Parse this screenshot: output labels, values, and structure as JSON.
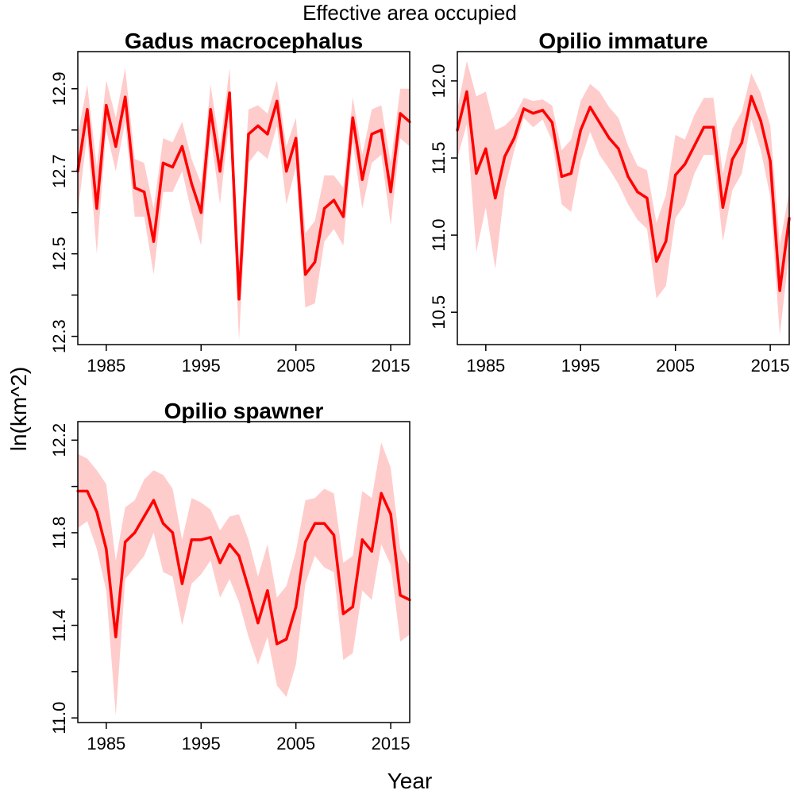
{
  "figure": {
    "title": "Effective area occupied",
    "xlabel": "Year",
    "ylabel": "ln(km^2)",
    "line_color": "#ff0000",
    "band_color": "#ffcccc"
  },
  "chart_data": [
    {
      "type": "line",
      "title": "Gadus macrocephalus",
      "xlabel": "Year",
      "ylabel": "ln(km^2)",
      "xlim": [
        1982,
        2017
      ],
      "ylim": [
        12.28,
        12.99
      ],
      "xticks": [
        1985,
        1995,
        2005,
        2015
      ],
      "yticks": [
        12.3,
        12.4,
        12.5,
        12.6,
        12.7,
        12.8,
        12.9
      ],
      "yticklabels": [
        "12.3",
        "",
        "12.5",
        "",
        "12.7",
        "",
        "12.9"
      ],
      "series": [
        {
          "x": [
            1982,
            1983,
            1984,
            1985,
            1986,
            1987,
            1988,
            1989,
            1990,
            1991,
            1992,
            1993,
            1994,
            1995,
            1996,
            1997,
            1998,
            1999,
            2000,
            2001,
            2002,
            2003,
            2004,
            2005,
            2006,
            2007,
            2008,
            2009,
            2010,
            2011,
            2012,
            2013,
            2014,
            2015,
            2016,
            2017
          ],
          "y": [
            12.7,
            12.85,
            12.61,
            12.86,
            12.76,
            12.88,
            12.66,
            12.65,
            12.53,
            12.72,
            12.71,
            12.76,
            12.67,
            12.6,
            12.85,
            12.7,
            12.89,
            12.39,
            12.79,
            12.81,
            12.79,
            12.87,
            12.7,
            12.78,
            12.45,
            12.48,
            12.61,
            12.63,
            12.59,
            12.83,
            12.68,
            12.79,
            12.8,
            12.65,
            12.84,
            12.82
          ],
          "lower": [
            12.6,
            12.79,
            12.5,
            12.8,
            12.7,
            12.82,
            12.59,
            12.59,
            12.45,
            12.65,
            12.65,
            12.7,
            12.6,
            12.52,
            12.79,
            12.62,
            12.83,
            12.29,
            12.72,
            12.75,
            12.73,
            12.81,
            12.62,
            12.71,
            12.37,
            12.38,
            12.53,
            12.56,
            12.52,
            12.77,
            12.61,
            12.72,
            12.74,
            12.57,
            12.78,
            12.76
          ],
          "upper": [
            12.79,
            12.91,
            12.71,
            12.92,
            12.83,
            12.95,
            12.73,
            12.72,
            12.61,
            12.78,
            12.77,
            12.82,
            12.73,
            12.67,
            12.91,
            12.76,
            12.95,
            12.48,
            12.85,
            12.86,
            12.84,
            12.92,
            12.76,
            12.83,
            12.55,
            12.58,
            12.69,
            12.69,
            12.66,
            12.88,
            12.74,
            12.85,
            12.86,
            12.72,
            12.9,
            12.9
          ]
        }
      ]
    },
    {
      "type": "line",
      "title": "Opilio immature",
      "xlabel": "Year",
      "ylabel": "ln(km^2)",
      "xlim": [
        1982,
        2017
      ],
      "ylim": [
        10.29,
        12.19
      ],
      "xticks": [
        1985,
        1995,
        2005,
        2015
      ],
      "yticks": [
        10.5,
        11.0,
        11.5,
        12.0
      ],
      "yticklabels": [
        "10.5",
        "11.0",
        "11.5",
        "12.0"
      ],
      "series": [
        {
          "x": [
            1982,
            1983,
            1984,
            1985,
            1986,
            1987,
            1988,
            1989,
            1990,
            1991,
            1992,
            1993,
            1994,
            1995,
            1996,
            1997,
            1998,
            1999,
            2000,
            2001,
            2002,
            2003,
            2004,
            2005,
            2006,
            2007,
            2008,
            2009,
            2010,
            2011,
            2012,
            2013,
            2014,
            2015,
            2016,
            2017
          ],
          "y": [
            11.68,
            11.93,
            11.4,
            11.56,
            11.24,
            11.51,
            11.63,
            11.82,
            11.79,
            11.81,
            11.73,
            11.38,
            11.4,
            11.68,
            11.83,
            11.73,
            11.63,
            11.56,
            11.38,
            11.28,
            11.24,
            10.83,
            10.96,
            11.39,
            11.46,
            11.58,
            11.7,
            11.7,
            11.18,
            11.49,
            11.6,
            11.9,
            11.74,
            11.48,
            10.64,
            11.11
          ],
          "lower": [
            11.5,
            11.72,
            10.89,
            11.18,
            10.78,
            11.3,
            11.55,
            11.76,
            11.7,
            11.75,
            11.61,
            11.2,
            11.15,
            11.48,
            11.67,
            11.52,
            11.43,
            11.33,
            11.2,
            11.1,
            11.04,
            10.59,
            10.67,
            11.11,
            11.2,
            11.4,
            11.52,
            11.52,
            10.96,
            11.29,
            11.4,
            11.75,
            11.55,
            11.25,
            10.35,
            10.89
          ],
          "upper": [
            11.82,
            12.13,
            11.9,
            11.93,
            11.68,
            11.71,
            11.77,
            11.89,
            11.87,
            11.88,
            11.84,
            11.55,
            11.62,
            11.87,
            11.98,
            11.93,
            11.83,
            11.76,
            11.58,
            11.45,
            11.42,
            11.08,
            11.26,
            11.65,
            11.62,
            11.78,
            11.89,
            11.89,
            11.4,
            11.69,
            11.8,
            12.05,
            11.92,
            11.71,
            10.94,
            11.28
          ]
        }
      ]
    },
    {
      "type": "line",
      "title": "Opilio spawner",
      "xlabel": "Year",
      "ylabel": "ln(km^2)",
      "xlim": [
        1982,
        2017
      ],
      "ylim": [
        10.98,
        12.28
      ],
      "xticks": [
        1985,
        1995,
        2005,
        2015
      ],
      "yticks": [
        11.0,
        11.2,
        11.4,
        11.6,
        11.8,
        12.0,
        12.2
      ],
      "yticklabels": [
        "11.0",
        "",
        "11.4",
        "",
        "11.8",
        "",
        "12.2"
      ],
      "series": [
        {
          "x": [
            1982,
            1983,
            1984,
            1985,
            1986,
            1987,
            1988,
            1989,
            1990,
            1991,
            1992,
            1993,
            1994,
            1995,
            1996,
            1997,
            1998,
            1999,
            2000,
            2001,
            2002,
            2003,
            2004,
            2005,
            2006,
            2007,
            2008,
            2009,
            2010,
            2011,
            2012,
            2013,
            2014,
            2015,
            2016,
            2017
          ],
          "y": [
            11.98,
            11.98,
            11.89,
            11.73,
            11.35,
            11.76,
            11.8,
            11.87,
            11.94,
            11.84,
            11.8,
            11.58,
            11.77,
            11.77,
            11.78,
            11.67,
            11.75,
            11.7,
            11.56,
            11.41,
            11.55,
            11.32,
            11.34,
            11.48,
            11.76,
            11.84,
            11.84,
            11.79,
            11.45,
            11.48,
            11.77,
            11.72,
            11.97,
            11.88,
            11.53,
            11.51
          ],
          "lower": [
            11.82,
            11.85,
            11.73,
            11.55,
            11.01,
            11.6,
            11.65,
            11.7,
            11.8,
            11.63,
            11.61,
            11.4,
            11.58,
            11.62,
            11.68,
            11.52,
            11.6,
            11.5,
            11.35,
            11.23,
            11.35,
            11.14,
            11.09,
            11.23,
            11.58,
            11.7,
            11.65,
            11.63,
            11.25,
            11.28,
            11.55,
            11.51,
            11.75,
            11.66,
            11.33,
            11.36
          ],
          "upper": [
            12.14,
            12.12,
            12.07,
            12.01,
            11.68,
            11.91,
            11.94,
            12.03,
            12.07,
            12.05,
            11.99,
            11.77,
            11.95,
            11.93,
            11.9,
            11.81,
            11.87,
            11.88,
            11.77,
            11.61,
            11.75,
            11.52,
            11.57,
            11.72,
            11.94,
            11.95,
            11.99,
            11.97,
            11.67,
            11.7,
            11.98,
            11.95,
            12.19,
            12.08,
            11.73,
            11.66
          ]
        }
      ]
    }
  ]
}
